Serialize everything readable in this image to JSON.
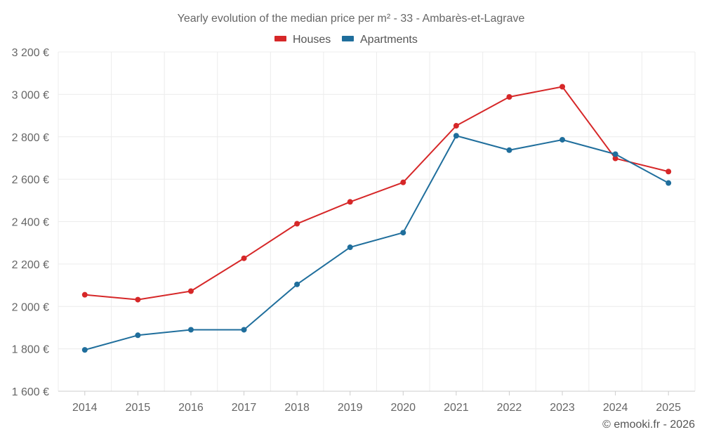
{
  "chart_data": {
    "type": "line",
    "title": "Yearly evolution of the median price per m² - 33 - Ambarès-et-Lagrave",
    "categories": [
      "2014",
      "2015",
      "2016",
      "2017",
      "2018",
      "2019",
      "2020",
      "2021",
      "2022",
      "2023",
      "2024",
      "2025"
    ],
    "series": [
      {
        "name": "Houses",
        "color": "#d62728",
        "values": [
          2055,
          2032,
          2072,
          2227,
          2390,
          2493,
          2585,
          2852,
          2988,
          3036,
          2698,
          2636
        ]
      },
      {
        "name": "Apartments",
        "color": "#1f6e9c",
        "values": [
          1795,
          1864,
          1890,
          1890,
          2104,
          2279,
          2348,
          2805,
          2737,
          2786,
          2718,
          2582
        ]
      }
    ],
    "y_ticks": [
      1600,
      1800,
      2000,
      2200,
      2400,
      2600,
      2800,
      3000,
      3200
    ],
    "y_tick_labels": [
      "1 600 €",
      "1 800 €",
      "2 000 €",
      "2 200 €",
      "2 400 €",
      "2 600 €",
      "2 800 €",
      "3 000 €",
      "3 200 €"
    ],
    "ylim": [
      1600,
      3200
    ],
    "xlabel": "",
    "ylabel": "",
    "grid": true,
    "legend_position": "top-center"
  },
  "credit": "© emooki.fr - 2026"
}
